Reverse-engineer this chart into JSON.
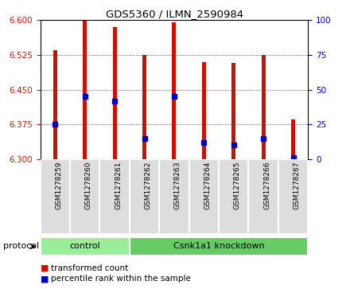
{
  "title": "GDS5360 / ILMN_2590984",
  "samples": [
    "GSM1278259",
    "GSM1278260",
    "GSM1278261",
    "GSM1278262",
    "GSM1278263",
    "GSM1278264",
    "GSM1278265",
    "GSM1278266",
    "GSM1278267"
  ],
  "bar_bottoms": [
    6.3,
    6.3,
    6.3,
    6.3,
    6.3,
    6.3,
    6.3,
    6.3,
    6.3
  ],
  "bar_tops": [
    6.535,
    6.6,
    6.585,
    6.525,
    6.595,
    6.51,
    6.508,
    6.525,
    6.385
  ],
  "blue_dots": [
    6.375,
    6.435,
    6.425,
    6.345,
    6.435,
    6.335,
    6.33,
    6.345,
    6.303
  ],
  "ylim": [
    6.3,
    6.6
  ],
  "yticks_left": [
    6.3,
    6.375,
    6.45,
    6.525,
    6.6
  ],
  "yticks_right": [
    0,
    25,
    50,
    75,
    100
  ],
  "bar_color": "#cc1100",
  "dot_color": "#0000cc",
  "background_color": "#ffffff",
  "plot_bg": "#ffffff",
  "control_color": "#99ee99",
  "knockdown_color": "#66cc66",
  "label_color_left": "#cc1100",
  "label_color_right": "#0000cc",
  "n_control": 3,
  "n_knockdown": 6,
  "protocol_label": "protocol",
  "control_label": "control",
  "knockdown_label": "Csnk1a1 knockdown",
  "legend_red": "transformed count",
  "legend_blue": "percentile rank within the sample",
  "bar_width": 0.13
}
